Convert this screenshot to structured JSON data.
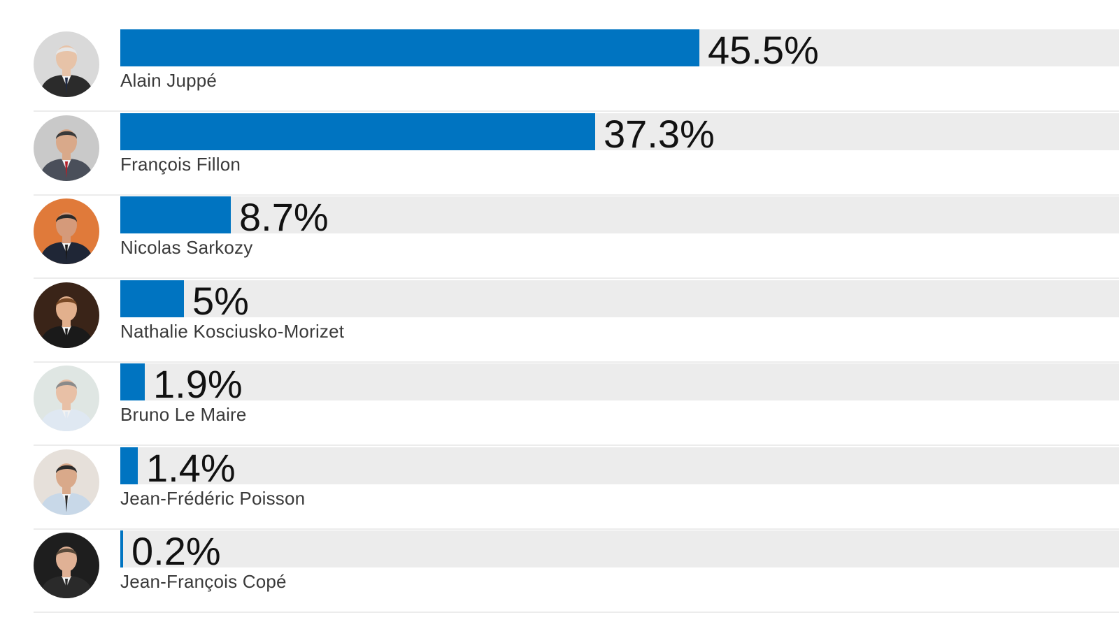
{
  "chart_data": {
    "type": "bar",
    "orientation": "horizontal",
    "categories": [
      "Alain Juppé",
      "François Fillon",
      "Nicolas Sarkozy",
      "Nathalie Kosciusko-Morizet",
      "Bruno Le Maire",
      "Jean-Frédéric Poisson",
      "Jean-François Copé"
    ],
    "values": [
      45.5,
      37.3,
      8.7,
      5,
      1.9,
      1.4,
      0.2
    ],
    "value_labels": [
      "45.5%",
      "37.3%",
      "8.7%",
      "5%",
      "1.9%",
      "1.4%",
      "0.2%"
    ],
    "xlim": [
      0,
      78.5
    ],
    "unit": "%",
    "legend": "none",
    "grid": false
  },
  "colors": {
    "bar": "#0074c1",
    "track": "#ececec",
    "value_text": "#111111",
    "name_text": "#3a3a3a",
    "divider": "#ececec"
  },
  "avatars": [
    {
      "icon": "candidate-portrait-icon",
      "bg": "#d9d9d9",
      "skin": "#e7c3a8",
      "hair": "#e6e6e6",
      "suit": "#2b2b2b",
      "tie": "#1f2a44"
    },
    {
      "icon": "candidate-portrait-icon",
      "bg": "#c9c9c9",
      "skin": "#d9a98a",
      "hair": "#3a3a3a",
      "suit": "#4a4f5a",
      "tie": "#b3202a"
    },
    {
      "icon": "candidate-portrait-icon",
      "bg": "#e07a3a",
      "skin": "#d59a7a",
      "hair": "#2a2a2a",
      "suit": "#1f2636",
      "tie": "#1a1a1a"
    },
    {
      "icon": "candidate-portrait-icon",
      "bg": "#3a2418",
      "skin": "#e2b08d",
      "hair": "#7a4a26",
      "suit": "#1a1a1a",
      "tie": "#1a1a1a"
    },
    {
      "icon": "candidate-portrait-icon",
      "bg": "#dfe6e3",
      "skin": "#e8c0a6",
      "hair": "#8a8a8a",
      "suit": "#dfe8f2",
      "tie": "#dfe8f2"
    },
    {
      "icon": "candidate-portrait-icon",
      "bg": "#e6e0da",
      "skin": "#d9a98a",
      "hair": "#2b2b2b",
      "suit": "#c8d8e8",
      "tie": "#2a2a2a"
    },
    {
      "icon": "candidate-portrait-icon",
      "bg": "#1e1e1e",
      "skin": "#e0b195",
      "hair": "#5a4a3a",
      "suit": "#2a2a2a",
      "tie": "#2a2a2a"
    }
  ]
}
